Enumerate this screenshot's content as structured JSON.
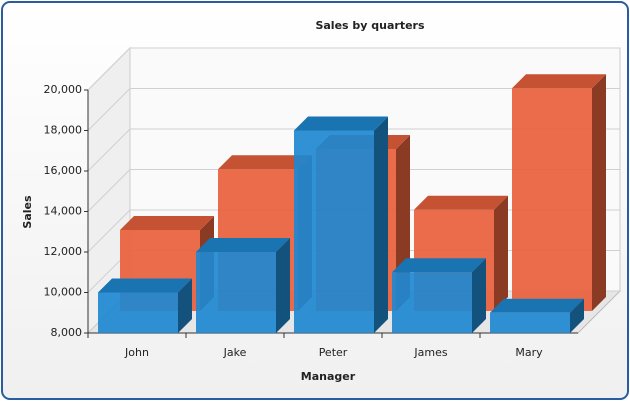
{
  "chart_data": {
    "type": "bar3d",
    "title": "Sales by quarters",
    "x_label": "Manager",
    "y_label": "Sales",
    "categories": [
      "John",
      "Jake",
      "Peter",
      "James",
      "Mary"
    ],
    "series": [
      {
        "color": "#e8603c",
        "values": [
          12000,
          15000,
          16000,
          13000,
          19000
        ]
      },
      {
        "color": "#1e88d0",
        "values": [
          10000,
          12000,
          18000,
          11000,
          9000
        ]
      }
    ],
    "ylim": [
      8000,
      20000
    ],
    "yticks": [
      {
        "value": 8000,
        "label": "8,000"
      },
      {
        "value": 10000,
        "label": "10,000"
      },
      {
        "value": 12000,
        "label": "12,000"
      },
      {
        "value": 14000,
        "label": "14,000"
      },
      {
        "value": 16000,
        "label": "16,000"
      },
      {
        "value": 18000,
        "label": "18,000"
      },
      {
        "value": 20000,
        "label": "20,000"
      }
    ],
    "grid": true
  }
}
